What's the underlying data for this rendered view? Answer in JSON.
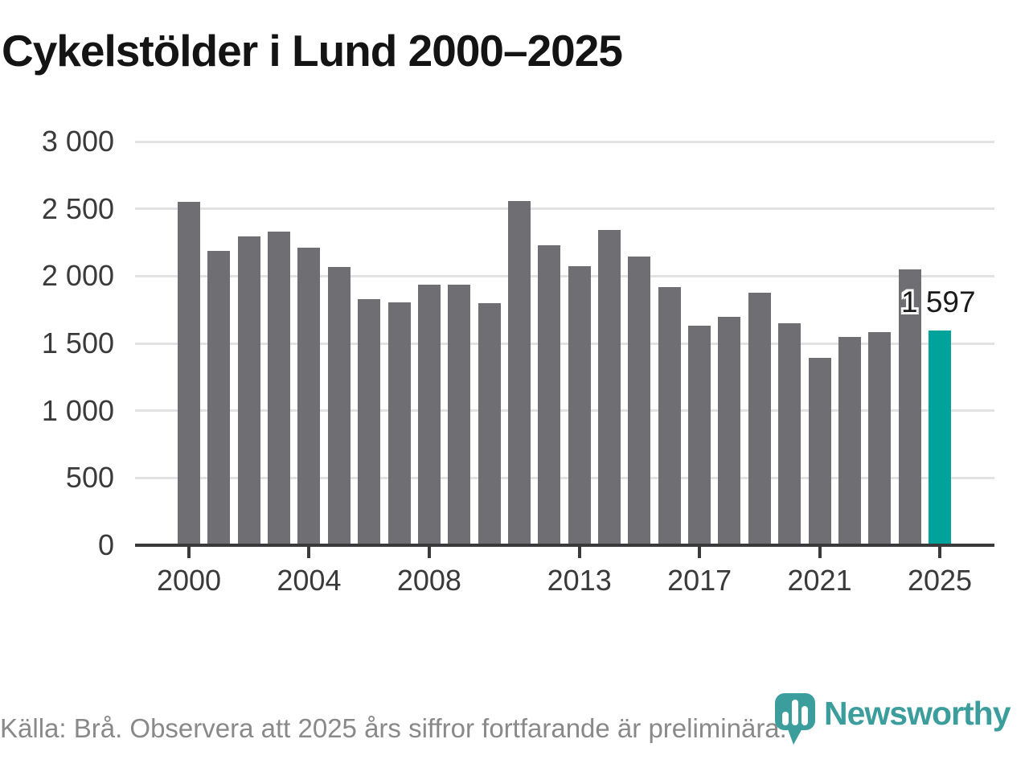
{
  "header": {
    "title": "Cykelstölder i Lund 2000–2025"
  },
  "chart_data": {
    "type": "bar",
    "title": "Cykelstölder i Lund 2000–2025",
    "x": [
      2000,
      2001,
      2002,
      2003,
      2004,
      2005,
      2006,
      2007,
      2008,
      2009,
      2010,
      2011,
      2012,
      2013,
      2014,
      2015,
      2016,
      2017,
      2018,
      2019,
      2020,
      2021,
      2022,
      2023,
      2024,
      2025
    ],
    "values": [
      2550,
      2185,
      2295,
      2330,
      2210,
      2070,
      1830,
      1805,
      1935,
      1935,
      1800,
      2560,
      2230,
      2075,
      2340,
      2145,
      1920,
      1630,
      1700,
      1875,
      1650,
      1395,
      1550,
      1585,
      2050,
      1597
    ],
    "ylim": [
      0,
      3000
    ],
    "yticks": [
      0,
      500,
      1000,
      1500,
      2000,
      2500,
      3000
    ],
    "ytick_labels": [
      "0",
      "500",
      "1 000",
      "1 500",
      "2 000",
      "2 500",
      "3 000"
    ],
    "xticks": [
      2000,
      2004,
      2008,
      2013,
      2017,
      2021,
      2025
    ],
    "grid": true,
    "legend": "none",
    "bar_color": "#6F6E72",
    "highlight_year": 2025,
    "highlight_color": "#00A39B",
    "highlight_label": "1 597",
    "annotations": [
      {
        "year": 2025,
        "label": "1 597"
      }
    ]
  },
  "footer": {
    "source": "Källa: Brå. Observera att 2025 års siffror fortfarande är preliminära.",
    "brand": "Newsworthy",
    "brand_color": "#3B9E9C"
  }
}
